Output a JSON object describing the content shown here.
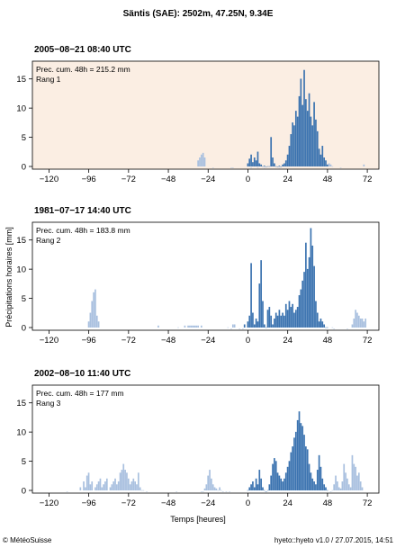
{
  "title": "Säntis (SAE): 2502m, 47.25N, 9.34E",
  "ylabel": "Précipitations horaires [mm]",
  "xlabel": "Temps [heures]",
  "footer_left": "© MétéoSuisse",
  "footer_right": "hyeto::hyeto v1.0 / 27.07.2015, 14:51",
  "colors": {
    "dark_bar": "#3b73b0",
    "light_bar": "#a9c0df",
    "panel1_bg": "#fbeee3",
    "panel_bg": "#ffffff"
  },
  "panels": [
    {
      "date": "2005−08−21 08:40 UTC",
      "info1": "Prec. cum. 48h = 215.2 mm",
      "info2": "Rang 1",
      "highlight": true,
      "xticks": [
        "−120",
        "−96",
        "−72",
        "−48",
        "−24",
        "0",
        "24",
        "48",
        "72"
      ],
      "yticks": [
        "0",
        "5",
        "10",
        "15"
      ]
    },
    {
      "date": "1981−07−17 14:40 UTC",
      "info1": "Prec. cum. 48h = 183.8 mm",
      "info2": "Rang 2",
      "highlight": false,
      "xticks": [
        "−120",
        "−96",
        "−72",
        "−48",
        "−24",
        "0",
        "24",
        "48",
        "72"
      ],
      "yticks": [
        "0",
        "5",
        "10",
        "15"
      ]
    },
    {
      "date": "2002−08−10 11:40 UTC",
      "info1": "Prec. cum. 48h = 177 mm",
      "info2": "Rang 3",
      "highlight": false,
      "xticks": [
        "−120",
        "−96",
        "−72",
        "−48",
        "−24",
        "0",
        "24",
        "48",
        "72"
      ],
      "yticks": [
        "0",
        "5",
        "10",
        "15"
      ]
    }
  ],
  "chart_data": [
    {
      "type": "bar",
      "title": "2005−08−21 08:40 UTC",
      "xlabel": "Temps [heures]",
      "ylabel": "Précipitations horaires [mm]",
      "xlim": [
        -130,
        79
      ],
      "ylim": [
        0,
        18.5
      ],
      "series": [
        {
          "color": "dark",
          "x": [
            0,
            1,
            2,
            3,
            4,
            5,
            6,
            7,
            8,
            9,
            10,
            11,
            12,
            13,
            14,
            15,
            16,
            17,
            18,
            19,
            20,
            21,
            22,
            23,
            24,
            25,
            26,
            27,
            28,
            29,
            30,
            31,
            32,
            33,
            34,
            35,
            36,
            37,
            38,
            39,
            40,
            41,
            42,
            43,
            44,
            45,
            46,
            47,
            48
          ],
          "values": [
            1.0,
            1.8,
            2.5,
            1.2,
            2.0,
            1.5,
            3.0,
            1.0,
            0.8,
            0.5,
            0.6,
            0.4,
            0.5,
            0.5,
            5.5,
            2.0,
            1.0,
            0.5,
            0.4,
            0.6,
            0.4,
            0.8,
            1.0,
            1.5,
            2.5,
            4.0,
            6.0,
            8.0,
            7.5,
            10.0,
            9.0,
            12.5,
            15.5,
            11.0,
            17.0,
            12.0,
            10.0,
            13.0,
            9.0,
            7.5,
            11.5,
            8.5,
            6.5,
            3.5,
            2.5,
            4.0,
            2.0,
            1.5,
            0.8
          ]
        },
        {
          "color": "light",
          "x": [
            -30,
            -29,
            -28,
            -27,
            -26,
            -21,
            -10,
            -9,
            2,
            6,
            10,
            19,
            49,
            50,
            51,
            56,
            70
          ],
          "values": [
            1.5,
            2.0,
            2.5,
            2.8,
            2.0,
            0.3,
            0.3,
            0.3,
            0.3,
            0.3,
            0.3,
            0.3,
            1.0,
            0.8,
            0.5,
            0.3,
            0.8
          ]
        }
      ]
    },
    {
      "type": "bar",
      "title": "1981−07−17 14:40 UTC",
      "xlabel": "Temps [heures]",
      "ylabel": "Précipitations horaires [mm]",
      "xlim": [
        -130,
        79
      ],
      "ylim": [
        0,
        18.5
      ],
      "series": [
        {
          "color": "dark",
          "x": [
            -2,
            0,
            1,
            2,
            3,
            4,
            5,
            6,
            7,
            8,
            9,
            10,
            11,
            12,
            13,
            14,
            15,
            16,
            17,
            18,
            19,
            20,
            21,
            22,
            23,
            24,
            25,
            26,
            27,
            28,
            29,
            30,
            31,
            32,
            33,
            34,
            35,
            36,
            37,
            38,
            39,
            40,
            41,
            42,
            43,
            44,
            45,
            46,
            47,
            48
          ],
          "values": [
            1.0,
            1.5,
            2.5,
            11.5,
            3.0,
            1.0,
            2.0,
            1.5,
            8.0,
            12.0,
            5.0,
            1.0,
            0.5,
            3.5,
            4.0,
            2.5,
            1.0,
            2.0,
            3.0,
            2.5,
            3.5,
            2.5,
            3.0,
            2.5,
            4.5,
            3.5,
            5.0,
            4.0,
            4.5,
            3.0,
            3.5,
            4.0,
            6.0,
            7.0,
            8.5,
            10.0,
            15.0,
            10.5,
            12.5,
            17.5,
            14.5,
            11.0,
            5.0,
            3.0,
            1.5,
            2.0,
            1.5,
            1.0,
            0.5,
            0.5
          ]
        },
        {
          "color": "light",
          "x": [
            -96,
            -95,
            -94,
            -93,
            -92,
            -91,
            -90,
            -54,
            -42,
            -38,
            -36,
            -35,
            -34,
            -33,
            -32,
            -31,
            -30,
            -28,
            -12,
            -10,
            -9,
            -8,
            -5,
            -3,
            51,
            52,
            60,
            63,
            64,
            65,
            66,
            67,
            68,
            69,
            70,
            71
          ],
          "values": [
            1.5,
            3.0,
            5.0,
            6.5,
            7.0,
            2.5,
            1.5,
            0.8,
            0.5,
            0.8,
            0.8,
            0.8,
            0.8,
            0.8,
            0.8,
            0.8,
            0.8,
            0.8,
            0.5,
            0.3,
            1.0,
            1.0,
            0.3,
            0.3,
            0.5,
            0.3,
            0.3,
            1.0,
            2.0,
            3.5,
            3.0,
            2.5,
            2.0,
            2.0,
            1.5,
            2.0
          ]
        }
      ]
    },
    {
      "type": "bar",
      "title": "2002−08−10 11:40 UTC",
      "xlabel": "Temps [heures]",
      "ylabel": "Précipitations horaires [mm]",
      "xlim": [
        -130,
        79
      ],
      "ylim": [
        0,
        18.5
      ],
      "series": [
        {
          "color": "dark",
          "x": [
            0,
            1,
            2,
            3,
            4,
            5,
            6,
            7,
            8,
            9,
            10,
            11,
            12,
            13,
            14,
            15,
            16,
            17,
            18,
            19,
            20,
            21,
            22,
            23,
            24,
            25,
            26,
            27,
            28,
            29,
            30,
            31,
            32,
            33,
            34,
            35,
            36,
            37,
            38,
            39,
            40,
            41,
            42,
            43,
            44,
            45,
            46,
            47,
            48
          ],
          "values": [
            0.5,
            1.0,
            1.5,
            2.0,
            1.0,
            2.5,
            1.5,
            4.0,
            2.5,
            1.0,
            0.5,
            0.3,
            0.5,
            1.5,
            3.0,
            5.0,
            6.0,
            5.5,
            3.5,
            3.0,
            2.5,
            2.0,
            2.5,
            3.5,
            4.5,
            5.5,
            7.0,
            8.0,
            9.5,
            10.5,
            12.5,
            14.0,
            12.0,
            11.5,
            10.0,
            8.0,
            7.5,
            5.0,
            3.5,
            2.5,
            2.0,
            1.5,
            4.0,
            6.5,
            4.5,
            2.5,
            1.5,
            1.0,
            0.5
          ]
        },
        {
          "color": "light",
          "x": [
            -109,
            -101,
            -99,
            -98,
            -97,
            -96,
            -95,
            -94,
            -92,
            -91,
            -90,
            -89,
            -88,
            -87,
            -86,
            -85,
            -83,
            -82,
            -81,
            -80,
            -79,
            -78,
            -77,
            -76,
            -75,
            -74,
            -73,
            -72,
            -71,
            -70,
            -69,
            -68,
            -67,
            -66,
            -65,
            -64,
            -63,
            -61,
            -43,
            -28,
            -27,
            -26,
            -25,
            -24,
            -23,
            -22,
            -21,
            -20,
            -19,
            -18,
            -17,
            -16,
            -15,
            -13,
            -11,
            50,
            51,
            52,
            53,
            54,
            55,
            56,
            57,
            58,
            59,
            60,
            61,
            62,
            63,
            64,
            65,
            66,
            67,
            68,
            69
          ],
          "values": [
            0.3,
            1.0,
            2.0,
            1.0,
            3.0,
            3.5,
            1.5,
            2.0,
            1.0,
            1.5,
            2.0,
            2.5,
            1.0,
            1.5,
            2.0,
            2.5,
            1.0,
            1.5,
            2.0,
            2.5,
            1.5,
            2.0,
            3.5,
            4.0,
            5.0,
            4.0,
            3.5,
            2.5,
            1.5,
            2.0,
            2.5,
            2.0,
            1.5,
            3.5,
            1.0,
            0.5,
            0.5,
            0.3,
            0.3,
            0.3,
            0.3,
            0.8,
            1.5,
            3.0,
            4.0,
            2.5,
            1.5,
            1.0,
            0.8,
            0.5,
            1.0,
            0.5,
            0.3,
            0.3,
            0.3,
            0.3,
            0.5,
            1.5,
            3.0,
            2.0,
            1.0,
            0.8,
            2.0,
            5.0,
            3.5,
            2.5,
            1.5,
            1.0,
            6.5,
            5.0,
            4.5,
            3.0,
            3.5,
            2.0,
            1.0
          ]
        }
      ]
    }
  ]
}
